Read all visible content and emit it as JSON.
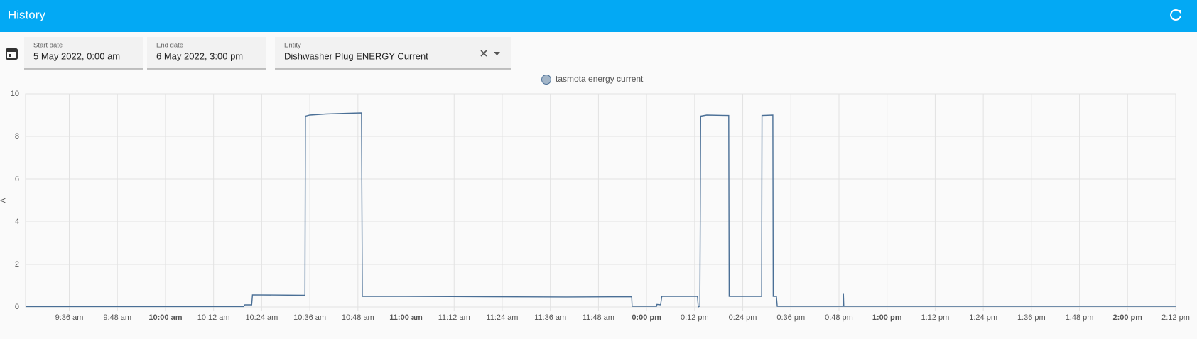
{
  "header": {
    "title": "History"
  },
  "filters": {
    "start_date": {
      "label": "Start date",
      "value": "5 May 2022, 0:00 am"
    },
    "end_date": {
      "label": "End date",
      "value": "6 May 2022, 3:00 pm"
    },
    "entity": {
      "label": "Entity",
      "value": "Dishwasher Plug ENERGY Current"
    }
  },
  "chart_data": {
    "type": "line",
    "y_label": "A",
    "grid": true,
    "xlim": [
      565.1,
      852
    ],
    "ylim": [
      0,
      10
    ],
    "yticks": [
      0,
      2,
      4,
      6,
      8,
      10
    ],
    "xticks": [
      {
        "value": 576,
        "label": "9:36 am"
      },
      {
        "value": 588,
        "label": "9:48 am"
      },
      {
        "value": 600,
        "label": "10:00 am"
      },
      {
        "value": 612,
        "label": "10:12 am"
      },
      {
        "value": 624,
        "label": "10:24 am"
      },
      {
        "value": 636,
        "label": "10:36 am"
      },
      {
        "value": 648,
        "label": "10:48 am"
      },
      {
        "value": 660,
        "label": "11:00 am"
      },
      {
        "value": 672,
        "label": "11:12 am"
      },
      {
        "value": 684,
        "label": "11:24 am"
      },
      {
        "value": 696,
        "label": "11:36 am"
      },
      {
        "value": 708,
        "label": "11:48 am"
      },
      {
        "value": 720,
        "label": "0:00 pm"
      },
      {
        "value": 732,
        "label": "0:12 pm"
      },
      {
        "value": 744,
        "label": "0:24 pm"
      },
      {
        "value": 756,
        "label": "0:36 pm"
      },
      {
        "value": 768,
        "label": "0:48 pm"
      },
      {
        "value": 780,
        "label": "1:00 pm"
      },
      {
        "value": 792,
        "label": "1:12 pm"
      },
      {
        "value": 804,
        "label": "1:24 pm"
      },
      {
        "value": 816,
        "label": "1:36 pm"
      },
      {
        "value": 828,
        "label": "1:48 pm"
      },
      {
        "value": 840,
        "label": "2:00 pm"
      },
      {
        "value": 852,
        "label": "2:12 pm"
      }
    ],
    "x": [
      565.1,
      619.5,
      619.8,
      621.5,
      621.7,
      634.8,
      634.9,
      636,
      640,
      645,
      648.9,
      649.1,
      660,
      680,
      700,
      716.3,
      716.4,
      722.5,
      722.6,
      723.5,
      723.8,
      732.7,
      732.9,
      733.3,
      733.5,
      735,
      740.5,
      740.6,
      748.7,
      748.8,
      751.5,
      751.6,
      752.4,
      752.6,
      769,
      769.1,
      769.2,
      851,
      852
    ],
    "series": [
      {
        "name": "tasmota energy current",
        "color": "#4a6f96",
        "values": [
          0.02,
          0.02,
          0.1,
          0.1,
          0.57,
          0.55,
          8.95,
          9.0,
          9.05,
          9.08,
          9.1,
          0.5,
          0.5,
          0.48,
          0.47,
          0.48,
          0.03,
          0.03,
          0.12,
          0.1,
          0.5,
          0.5,
          0,
          0.05,
          8.95,
          9.0,
          8.98,
          0.5,
          0.5,
          8.98,
          9.0,
          0.5,
          0.5,
          0.03,
          0.03,
          0.65,
          0.03,
          0.03,
          0.03
        ]
      }
    ]
  }
}
